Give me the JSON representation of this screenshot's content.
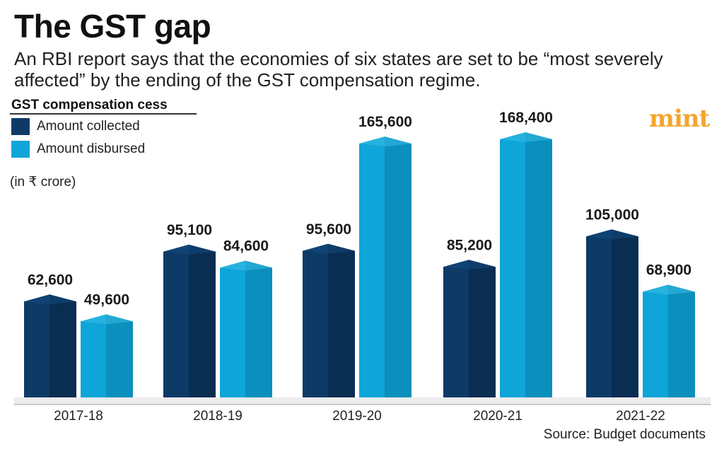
{
  "title": "The GST gap",
  "subtitle": "An RBI report says that the economies of six states are set to be “most severely affected” by the ending of the GST compensation regime.",
  "legend": {
    "title": "GST compensation cess",
    "items": [
      {
        "label": "Amount collected",
        "color": "#0d3a66"
      },
      {
        "label": "Amount disbursed",
        "color": "#0ea5d8"
      }
    ]
  },
  "unit_note": "(in ₹ crore)",
  "logo": "mint",
  "source": "Source: Budget documents",
  "colors": {
    "collected_front": "#0d3a66",
    "collected_side": "#0a2d52",
    "collected_top": "#124a80",
    "disbursed_front": "#0ea5d8",
    "disbursed_side": "#0b8fbd",
    "disbursed_top": "#38bde6"
  },
  "chart_data": {
    "type": "bar",
    "title": "GST compensation cess",
    "categories": [
      "2017-18",
      "2018-19",
      "2019-20",
      "2020-21",
      "2021-22"
    ],
    "series": [
      {
        "name": "Amount collected",
        "values": [
          62600,
          95100,
          95600,
          85200,
          105000
        ],
        "labels": [
          "62,600",
          "95,100",
          "95,600",
          "85,200",
          "105,000"
        ]
      },
      {
        "name": "Amount disbursed",
        "values": [
          49600,
          84600,
          165600,
          168400,
          68900
        ],
        "labels": [
          "49,600",
          "84,600",
          "165,600",
          "168,400",
          "68,900"
        ]
      }
    ],
    "ylabel": "(in ₹ crore)",
    "xlabel": "",
    "ylim": [
      0,
      168400
    ],
    "grid": false,
    "legend_position": "top-left"
  }
}
